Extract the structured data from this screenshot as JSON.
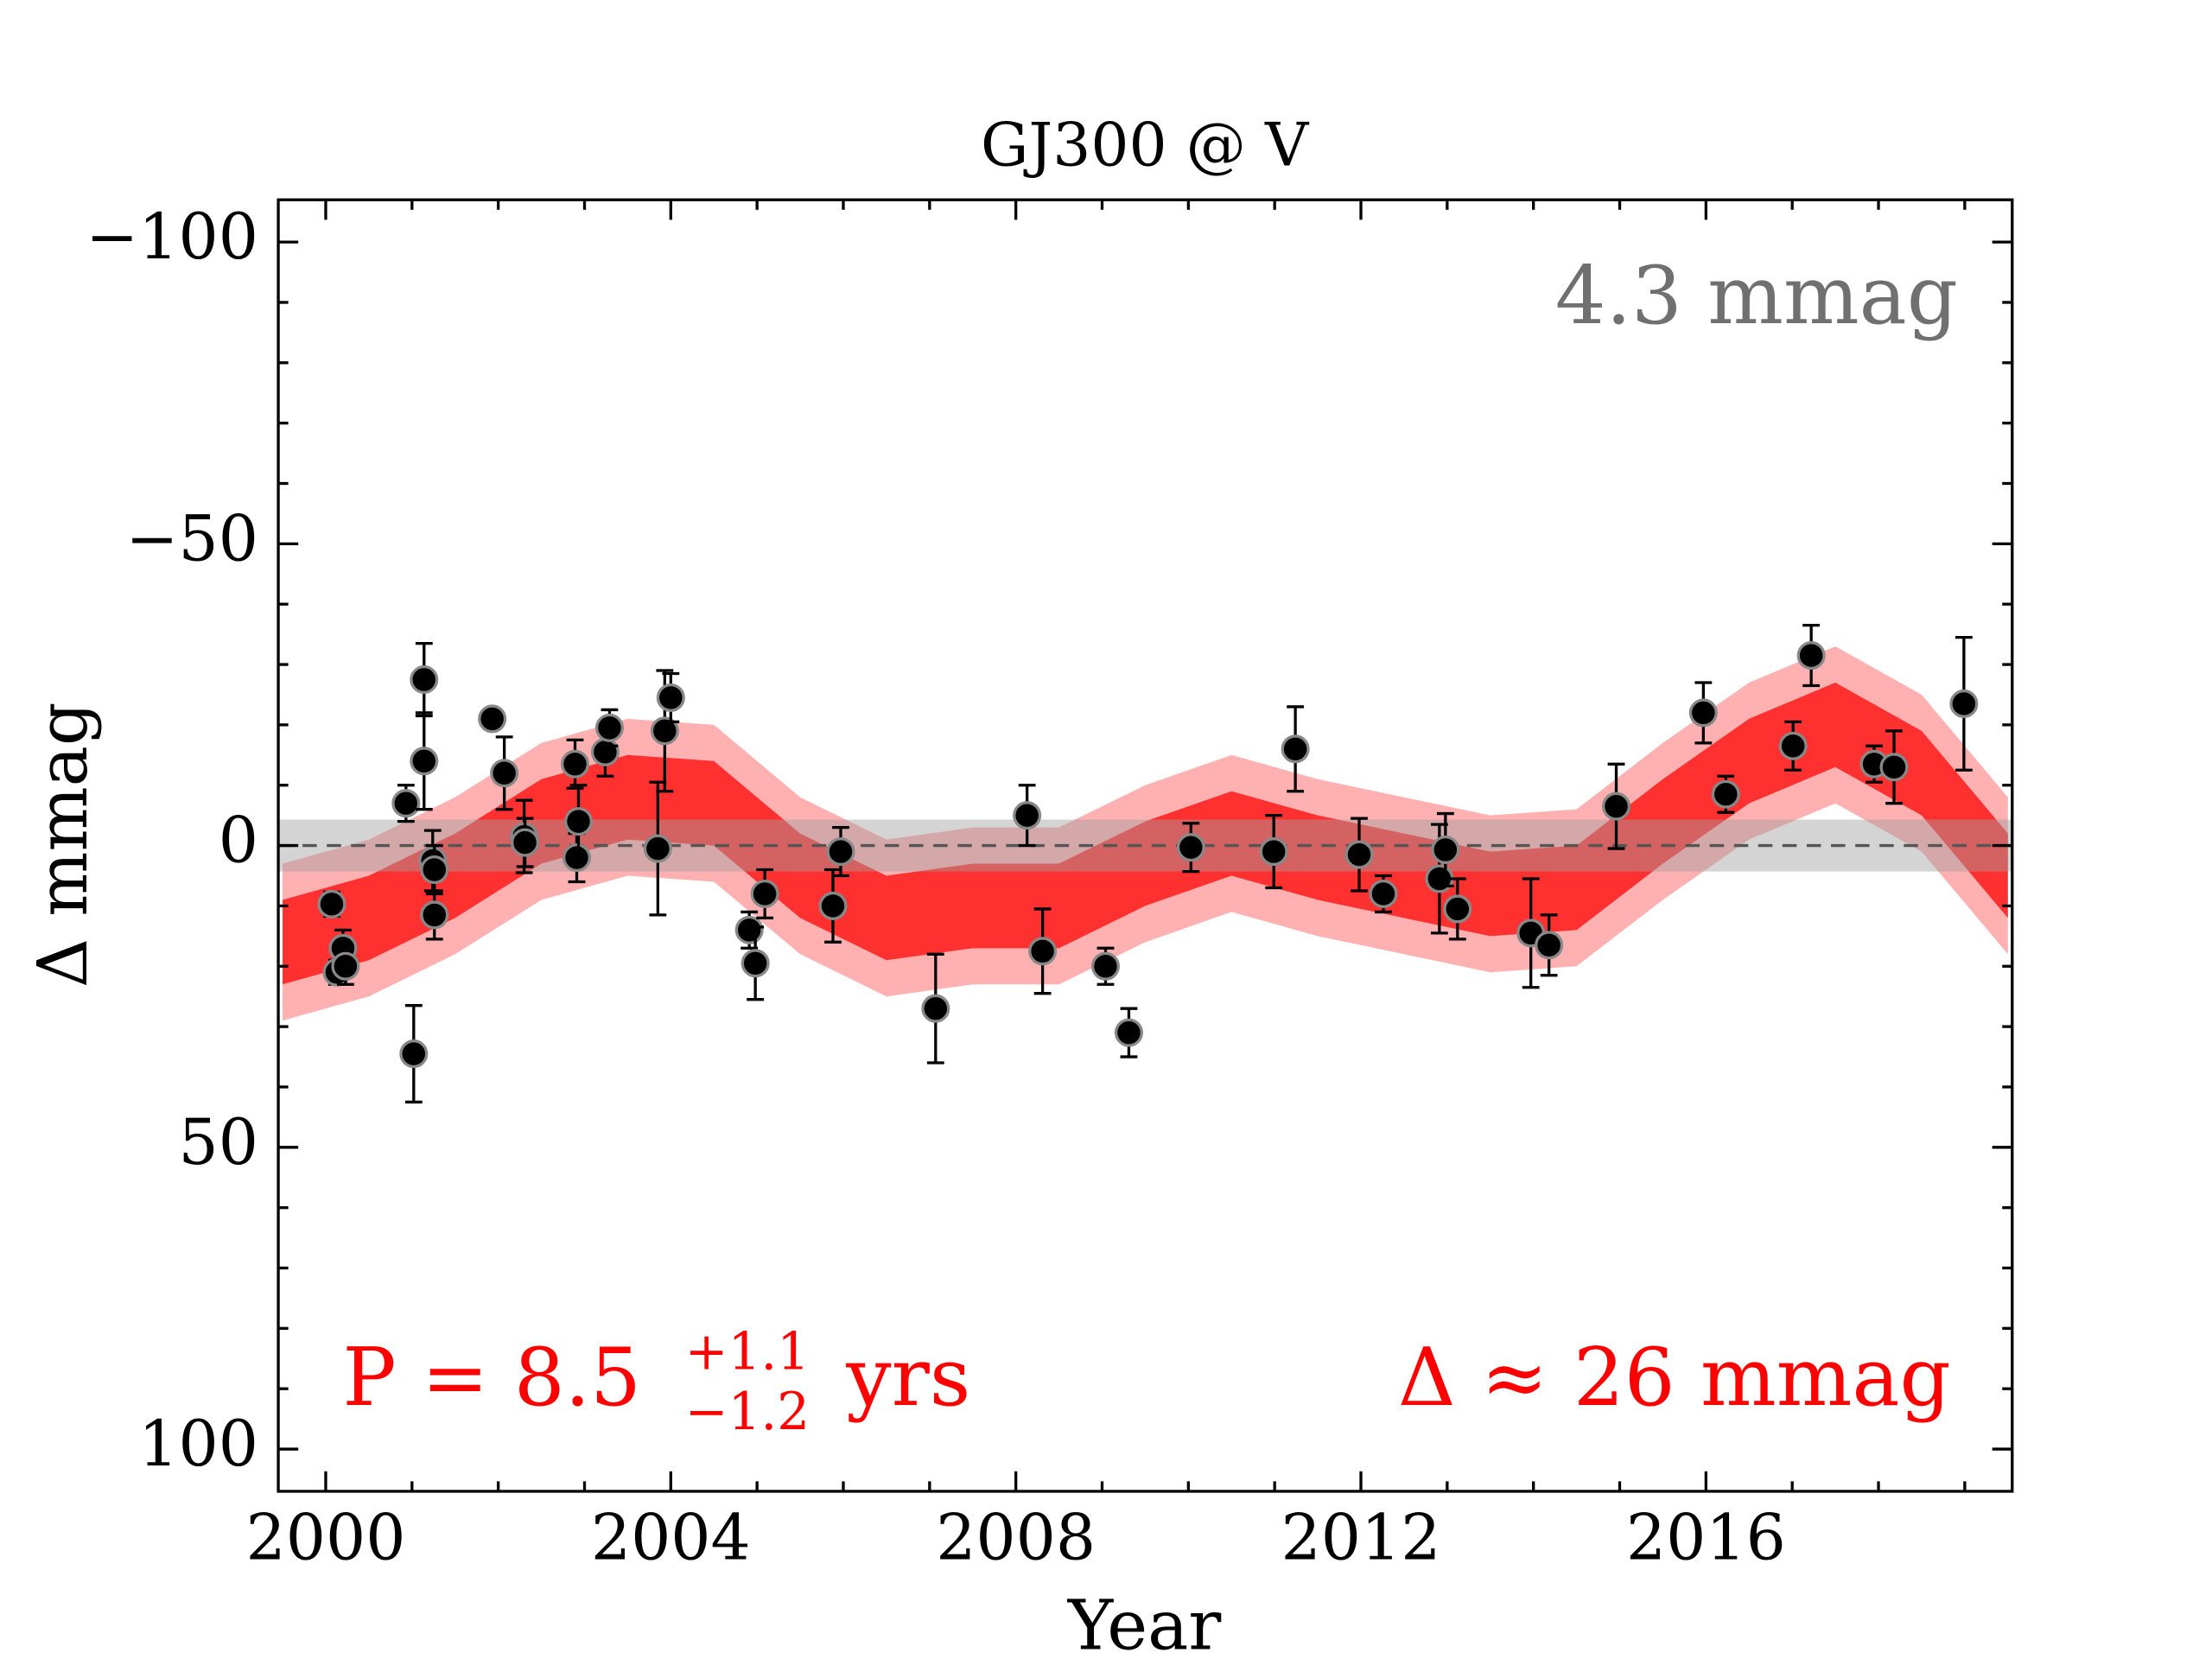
{
  "chart_data": {
    "type": "errorbar",
    "title": "GJ300 @ V",
    "x_label": "Year",
    "y_label": "Δ  mmag",
    "xlim": [
      1999.45,
      2019.55
    ],
    "ylim": [
      -107,
      107
    ],
    "y_inverted": true,
    "xticks": [
      2000,
      2004,
      2008,
      2012,
      2016
    ],
    "yticks": [
      {
        "value": -100,
        "label": "−100"
      },
      {
        "value": -50,
        "label": "−50"
      },
      0,
      50,
      100
    ],
    "xminorticks": [
      2001,
      2002,
      2003,
      2005,
      2006,
      2007,
      2009,
      2010,
      2011,
      2013,
      2014,
      2015,
      2017,
      2018,
      2019
    ],
    "yminorticks": [
      -90,
      -80,
      -70,
      -60,
      -40,
      -30,
      -20,
      -10,
      10,
      20,
      30,
      40,
      60,
      70,
      80,
      90
    ],
    "x": [
      2000.07,
      2000.13,
      2000.2,
      2000.23,
      2000.93,
      2001.02,
      2001.14,
      2001.14,
      2001.24,
      2001.26,
      2001.26,
      2001.93,
      2002.07,
      2002.3,
      2002.31,
      2002.89,
      2002.91,
      2002.93,
      2003.24,
      2003.29,
      2003.85,
      2003.93,
      2004.0,
      2004.91,
      2004.98,
      2005.09,
      2005.88,
      2005.97,
      2007.07,
      2008.13,
      2008.31,
      2009.04,
      2009.31,
      2010.03,
      2010.99,
      2011.24,
      2011.98,
      2012.26,
      2012.91,
      2012.98,
      2013.12,
      2013.97,
      2014.18,
      2014.96,
      2015.97,
      2016.23,
      2017.01,
      2017.22,
      2017.95,
      2018.18,
      2018.99
    ],
    "values": [
      9.7,
      21,
      17,
      20,
      -7,
      34.5,
      -27.5,
      -14,
      2.5,
      4,
      11.5,
      -21,
      -12,
      -1.5,
      -0.5,
      -13.5,
      2,
      -4,
      -15.5,
      -19.5,
      0.5,
      -19,
      -24.5,
      14,
      19.5,
      8,
      10,
      1,
      27,
      -5,
      17.5,
      20,
      31,
      0.3,
      1,
      -16,
      1.5,
      8,
      5.5,
      0.7,
      10.5,
      14.5,
      16.5,
      -6.5,
      -22,
      -8.5,
      -16.5,
      -31.5,
      -13.5,
      -13,
      -23.5
    ],
    "errors": [
      2,
      2,
      3,
      3,
      3,
      8,
      6,
      8,
      5,
      4,
      4,
      1,
      6,
      6,
      4,
      4,
      4,
      6,
      4,
      3,
      11,
      10,
      4,
      3,
      6,
      4,
      6,
      4,
      9,
      5,
      7,
      3,
      4,
      4,
      6,
      7,
      6,
      3,
      9,
      6,
      5,
      9,
      5,
      7,
      5,
      3,
      4,
      5,
      3,
      6,
      11
    ],
    "color": "#000000",
    "band_x": [
      1999.5,
      2000.5,
      2001.5,
      2002.5,
      2003.5,
      2004.5,
      2005.5,
      2006.5,
      2007.5,
      2008.5,
      2009.5,
      2010.5,
      2011.5,
      2012.5,
      2013.5,
      2014.5,
      2015.5,
      2016.5,
      2017.5,
      2018.5,
      2019.5
    ],
    "outer_band": {
      "color": "#ffb0b0",
      "lower": [
        3,
        -1,
        -8,
        -17,
        -21,
        -20,
        -8,
        -1,
        -3,
        -3,
        -10,
        -15,
        -11,
        -8,
        -5,
        -6,
        -17,
        -27,
        -33,
        -25,
        -8
      ],
      "upper": [
        29,
        25,
        18,
        9,
        5,
        6,
        18,
        25,
        23,
        23,
        16,
        11,
        15,
        18,
        21,
        20,
        9,
        -1,
        -7,
        1,
        18
      ]
    },
    "inner_band": {
      "color": "#ff3030",
      "lower": [
        9,
        5,
        -2,
        -11,
        -15,
        -14,
        -2,
        5,
        3,
        3,
        -4,
        -9,
        -5,
        -2,
        1,
        0,
        -11,
        -21,
        -27,
        -19,
        -2
      ],
      "upper": [
        23,
        19,
        12,
        3,
        -1,
        0,
        12,
        19,
        17,
        17,
        10,
        5,
        9,
        12,
        15,
        14,
        3,
        -7,
        -13,
        -5,
        12
      ]
    },
    "noise_band": 4.3,
    "noise_color": "#a0a0a0",
    "zero_line": 0,
    "noise_label": "4.3 mmag",
    "period_label": {
      "main": "P = 8.5",
      "plus": "+1.1",
      "minus": "−1.2",
      "unit": "yrs"
    },
    "amplitude_label": "Δ ≈ 26 mmag"
  }
}
